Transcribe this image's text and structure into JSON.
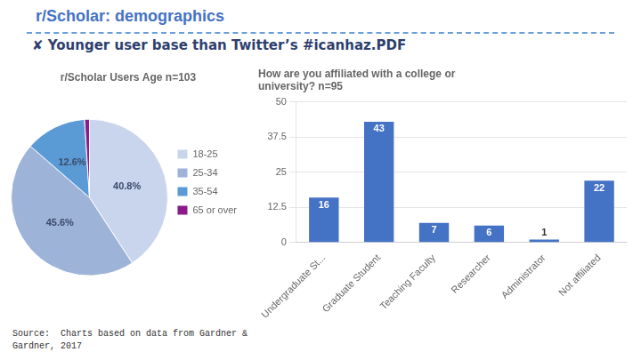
{
  "title": "r/Scholar: demographics",
  "subtitle": "✘ Younger user base than Twitter’s #icanhaz.PDF",
  "annotations": [
    "Source:  Charts based on data from Gardner &\nGardner, 2017"
  ],
  "chart_data": [
    {
      "type": "pie",
      "title": "r/Scholar Users Age n=103",
      "categories": [
        "18-25",
        "25-34",
        "35-54",
        "65 or over"
      ],
      "values": [
        40.8,
        45.6,
        12.6,
        1.0
      ],
      "value_labels": [
        "40.8%",
        "45.6%",
        "12.6%",
        null
      ],
      "colors": [
        "#c9d4ed",
        "#9db3d8",
        "#5b9bd5",
        "#8B1A8B"
      ],
      "data_labels": true,
      "legend": "right"
    },
    {
      "type": "bar",
      "title": "How are you affiliated with a college or\nuniversity? n=95",
      "categories": [
        "Undergraduate St...",
        "Graduate Student",
        "Teaching Faculty",
        "Researcher",
        "Administrator",
        "Not affiliated"
      ],
      "values": [
        16,
        43,
        7,
        6,
        1,
        22
      ],
      "color": "#4472c4",
      "ylim": [
        0,
        50
      ],
      "yticks": [
        0,
        12.5,
        25,
        37.5,
        50
      ],
      "grid": true,
      "data_labels": true
    }
  ]
}
